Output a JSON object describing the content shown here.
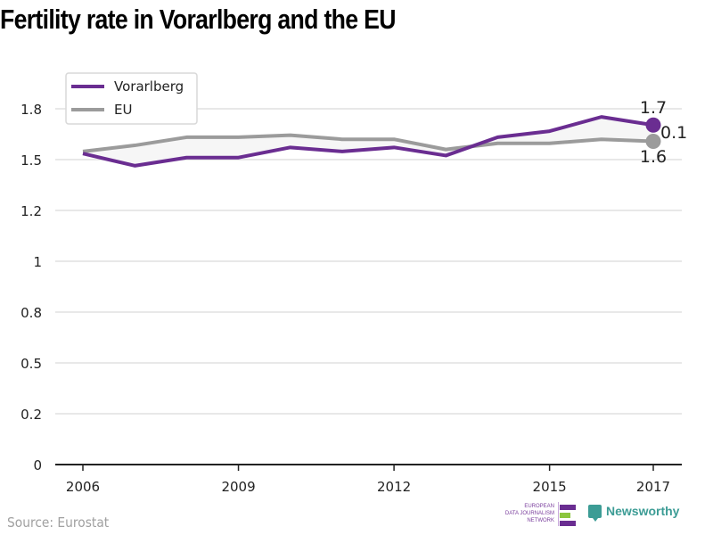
{
  "header": {
    "title": "Fertility rate in Vorarlberg and the EU"
  },
  "footer": {
    "source": "Source: Eurostat",
    "edjnet_lines": [
      "EUROPEAN",
      "DATA JOURNALISM",
      "NETWORK"
    ],
    "newsworthy": "Newsworthy"
  },
  "colors": {
    "vorarlberg": "#6a2d91",
    "eu": "#9b9b9b",
    "grid": "#e0e0e0",
    "area": "#f6f6f6",
    "edjnet_purple": "#6a2d91",
    "edjnet_green": "#8cc63f",
    "newsworthy": "#3c9c95"
  },
  "chart_data": {
    "type": "line",
    "title": "Fertility rate in Vorarlberg and the EU",
    "xlabel": "",
    "ylabel": "",
    "x": [
      2006,
      2007,
      2008,
      2009,
      2010,
      2011,
      2012,
      2013,
      2014,
      2015,
      2016,
      2017
    ],
    "x_ticks": [
      2006,
      2009,
      2012,
      2015,
      2017
    ],
    "y_ticks": [
      0,
      0.25,
      0.5,
      0.75,
      1,
      1.25,
      1.5,
      1.75
    ],
    "y_tick_labels": [
      "0",
      "0.2",
      "0.5",
      "0.8",
      "1",
      "1.2",
      "1.5",
      "1.8"
    ],
    "ylim": [
      0,
      1.75
    ],
    "grid": true,
    "legend_position": "top-left",
    "series": [
      {
        "name": "Vorarlberg",
        "values": [
          1.53,
          1.47,
          1.51,
          1.51,
          1.56,
          1.54,
          1.56,
          1.52,
          1.61,
          1.64,
          1.71,
          1.67
        ]
      },
      {
        "name": "EU",
        "values": [
          1.54,
          1.57,
          1.61,
          1.61,
          1.62,
          1.6,
          1.6,
          1.55,
          1.58,
          1.58,
          1.6,
          1.59
        ]
      }
    ],
    "annotations": {
      "vorarlberg_end_label": "1.7",
      "eu_end_label": "1.6",
      "difference_label": "0.1"
    }
  }
}
